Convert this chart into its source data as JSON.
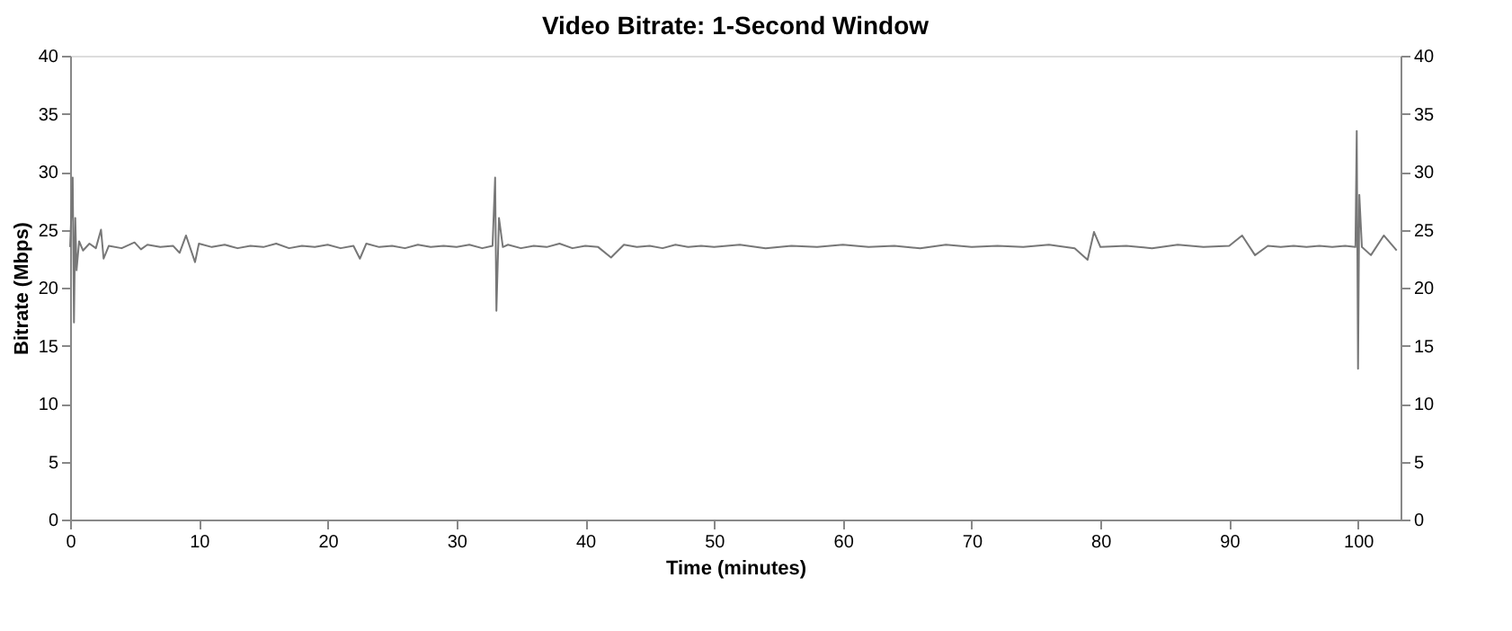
{
  "chart_data": {
    "type": "line",
    "title": "Video Bitrate: 1-Second Window",
    "xlabel": "Time (minutes)",
    "ylabel": "Bitrate (Mbps)",
    "series": [
      {
        "color": "#777777",
        "x": [
          0,
          0.2,
          0.3,
          0.4,
          0.5,
          0.7,
          1,
          1.5,
          2,
          2.4,
          2.6,
          3,
          4,
          5,
          5.5,
          6,
          7,
          8,
          8.5,
          9,
          9.7,
          10,
          11,
          12,
          13,
          14,
          15,
          16,
          17,
          18,
          19,
          20,
          21,
          22,
          22.5,
          23,
          24,
          25,
          26,
          27,
          28,
          29,
          30,
          31,
          32,
          32.8,
          33,
          33.1,
          33.3,
          33.6,
          34,
          35,
          36,
          37,
          38,
          39,
          40,
          41,
          42,
          43,
          44,
          45,
          46,
          47,
          48,
          49,
          50,
          52,
          54,
          56,
          58,
          60,
          62,
          64,
          66,
          68,
          70,
          72,
          74,
          76,
          78,
          79,
          79.5,
          80,
          82,
          84,
          86,
          88,
          90,
          91,
          92,
          93,
          94,
          95,
          96,
          97,
          98,
          99,
          99.8,
          99.9,
          100,
          100.1,
          100.3,
          101,
          102,
          103
        ],
        "values": [
          23.5,
          29.5,
          17,
          26,
          21.5,
          24,
          23.2,
          23.8,
          23.4,
          25,
          22.5,
          23.6,
          23.4,
          23.9,
          23.3,
          23.7,
          23.5,
          23.6,
          23,
          24.5,
          22.2,
          23.8,
          23.5,
          23.7,
          23.4,
          23.6,
          23.5,
          23.8,
          23.4,
          23.6,
          23.5,
          23.7,
          23.4,
          23.6,
          22.5,
          23.8,
          23.5,
          23.6,
          23.4,
          23.7,
          23.5,
          23.6,
          23.5,
          23.7,
          23.4,
          23.6,
          29.5,
          18,
          26,
          23.5,
          23.7,
          23.4,
          23.6,
          23.5,
          23.8,
          23.4,
          23.6,
          23.5,
          22.6,
          23.7,
          23.5,
          23.6,
          23.4,
          23.7,
          23.5,
          23.6,
          23.5,
          23.7,
          23.4,
          23.6,
          23.5,
          23.7,
          23.5,
          23.6,
          23.4,
          23.7,
          23.5,
          23.6,
          23.5,
          23.7,
          23.4,
          22.4,
          24.8,
          23.5,
          23.6,
          23.4,
          23.7,
          23.5,
          23.6,
          24.5,
          22.8,
          23.6,
          23.5,
          23.6,
          23.5,
          23.6,
          23.5,
          23.6,
          23.5,
          33.5,
          13,
          28,
          23.5,
          22.8,
          24.5,
          23.2
        ]
      }
    ],
    "xlim": [
      0,
      103.3
    ],
    "xticks": [
      0,
      10,
      20,
      30,
      40,
      50,
      60,
      70,
      80,
      90,
      100
    ],
    "ylim": [
      0,
      40
    ],
    "yticks": [
      0,
      5,
      10,
      15,
      20,
      25,
      30,
      35,
      40
    ],
    "y2lim": [
      0,
      40
    ],
    "y2ticks": [
      0,
      5,
      10,
      15,
      20,
      25,
      30,
      35,
      40
    ],
    "grid": false,
    "legend": false,
    "marker": "none",
    "line_style": "solid"
  }
}
